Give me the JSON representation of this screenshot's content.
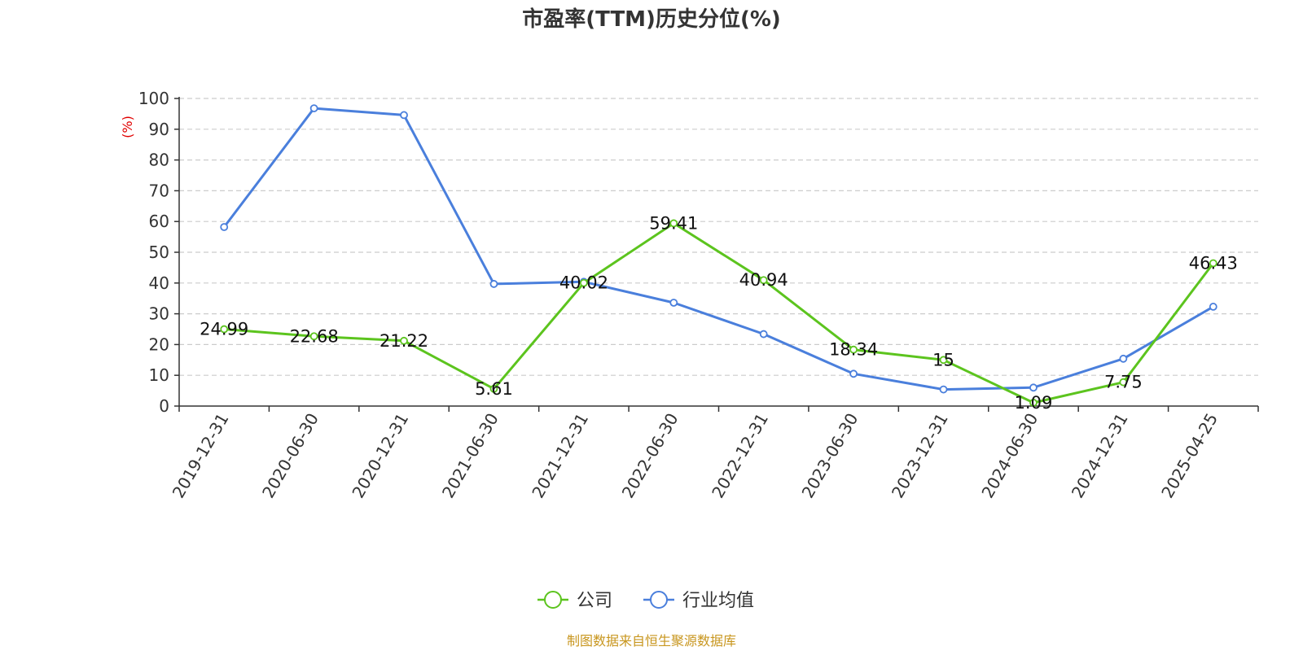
{
  "chart_data": {
    "type": "line",
    "title": "市盈率(TTM)历史分位(%)",
    "ylabel": "(%)",
    "ylim": [
      0,
      100
    ],
    "yticks": [
      0,
      10,
      20,
      30,
      40,
      50,
      60,
      70,
      80,
      90,
      100
    ],
    "grid": true,
    "legend_position": "bottom-center",
    "categories": [
      "2019-12-31",
      "2020-06-30",
      "2020-12-31",
      "2021-06-30",
      "2021-12-31",
      "2022-06-30",
      "2022-12-31",
      "2023-06-30",
      "2023-12-31",
      "2024-06-30",
      "2024-12-31",
      "2025-04-25"
    ],
    "series": [
      {
        "name": "公司",
        "color": "#5cc41e",
        "values": [
          24.99,
          22.68,
          21.22,
          5.61,
          40.02,
          59.41,
          40.94,
          18.34,
          15,
          1.09,
          7.75,
          46.43
        ],
        "labels": [
          "24.99",
          "22.68",
          "21.22",
          "5.61",
          "40.02",
          "59.41",
          "40.94",
          "18.34",
          "15",
          "1.09",
          "7.75",
          "46.43"
        ]
      },
      {
        "name": "行业均值",
        "color": "#4a7fdc",
        "values": [
          58.2,
          96.8,
          94.6,
          39.7,
          40.4,
          33.6,
          23.4,
          10.5,
          5.4,
          6.0,
          15.4,
          32.3
        ]
      }
    ],
    "source": "制图数据来自恒生聚源数据库"
  }
}
